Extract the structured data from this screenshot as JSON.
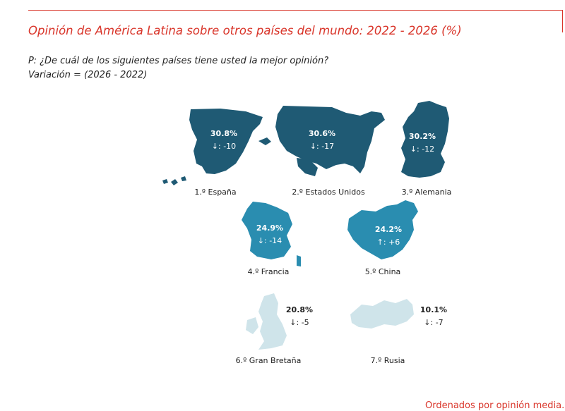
{
  "header": {
    "title": "Opinión de América Latina sobre otros países del mundo: 2022 - 2026 (%)",
    "question": "P: ¿De cuál de los siguientes países tiene usted la mejor opinión?",
    "variation": "Variación = (2026 - 2022)",
    "footer_fragment": "Ordenados por opinión media..."
  },
  "colors": {
    "accent": "#d9352a",
    "dark_teal": "#1f5a74",
    "mid_teal": "#2a8db0",
    "light_blue": "#cfe4ea"
  },
  "chart_data": {
    "type": "table",
    "title": "Opinión de América Latina sobre otros países del mundo: 2022 - 2026 (%)",
    "value_unit": "%",
    "rows": [
      {
        "rank_label": "1.º España",
        "value": 30.8,
        "value_label": "30.8%",
        "change": -10,
        "change_label": "↓: -10",
        "shade": "dark"
      },
      {
        "rank_label": "2.º Estados Unidos",
        "value": 30.6,
        "value_label": "30.6%",
        "change": -17,
        "change_label": "↓: -17",
        "shade": "dark"
      },
      {
        "rank_label": "3.º Alemania",
        "value": 30.2,
        "value_label": "30.2%",
        "change": -12,
        "change_label": "↓: -12",
        "shade": "dark"
      },
      {
        "rank_label": "4.º Francia",
        "value": 24.9,
        "value_label": "24.9%",
        "change": -14,
        "change_label": "↓: -14",
        "shade": "mid"
      },
      {
        "rank_label": "5.º China",
        "value": 24.2,
        "value_label": "24.2%",
        "change": 6,
        "change_label": "↑: +6",
        "shade": "mid"
      },
      {
        "rank_label": "6.º Gran Bretaña",
        "value": 20.8,
        "value_label": "20.8%",
        "change": -5,
        "change_label": "↓: -5",
        "shade": "light"
      },
      {
        "rank_label": "7.º Rusia",
        "value": 10.1,
        "value_label": "10.1%",
        "change": -7,
        "change_label": "↓: -7",
        "shade": "light"
      }
    ]
  }
}
